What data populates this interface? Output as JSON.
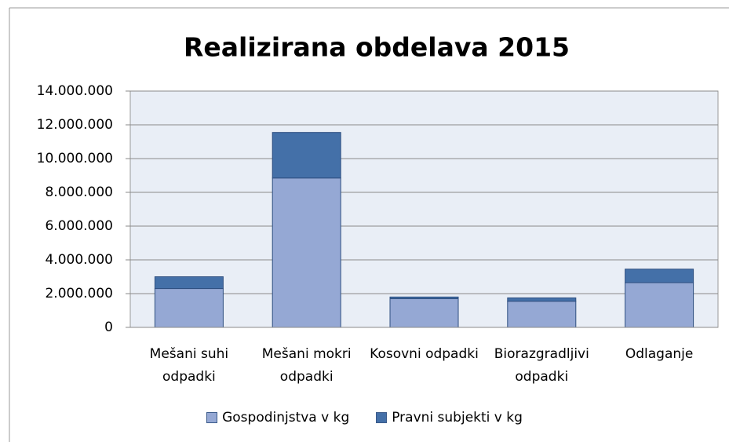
{
  "chart_data": {
    "type": "stacked_bar",
    "title": "Realizirana obdelava 2015",
    "categories": [
      "Mešani suhi odpadki",
      "Mešani mokri odpadki",
      "Kosovni odpadki",
      "Biorazgradljivi odpadki",
      "Odlaganje"
    ],
    "series": [
      {
        "name": "Gospodinjstva v kg",
        "color": "#95a8d4",
        "values": [
          2300000,
          8850000,
          1700000,
          1550000,
          2650000
        ]
      },
      {
        "name": "Pravni subjekti v kg",
        "color": "#4470a8",
        "values": [
          700000,
          2700000,
          100000,
          200000,
          800000
        ]
      }
    ],
    "ylim": [
      0,
      14000000
    ],
    "yticks": [
      0,
      {
        "value": 2000000,
        "label": "2.000.000"
      },
      {
        "value": 4000000,
        "label": "4.000.000"
      },
      {
        "value": 6000000,
        "label": "6.000.000"
      },
      {
        "value": 8000000,
        "label": "8.000.000"
      },
      {
        "value": 10000000,
        "label": "10.000.000"
      },
      {
        "value": 12000000,
        "label": "12.000.000"
      },
      {
        "value": 14000000,
        "label": "14.000.000"
      }
    ],
    "grid": true,
    "legend": "bottom"
  }
}
